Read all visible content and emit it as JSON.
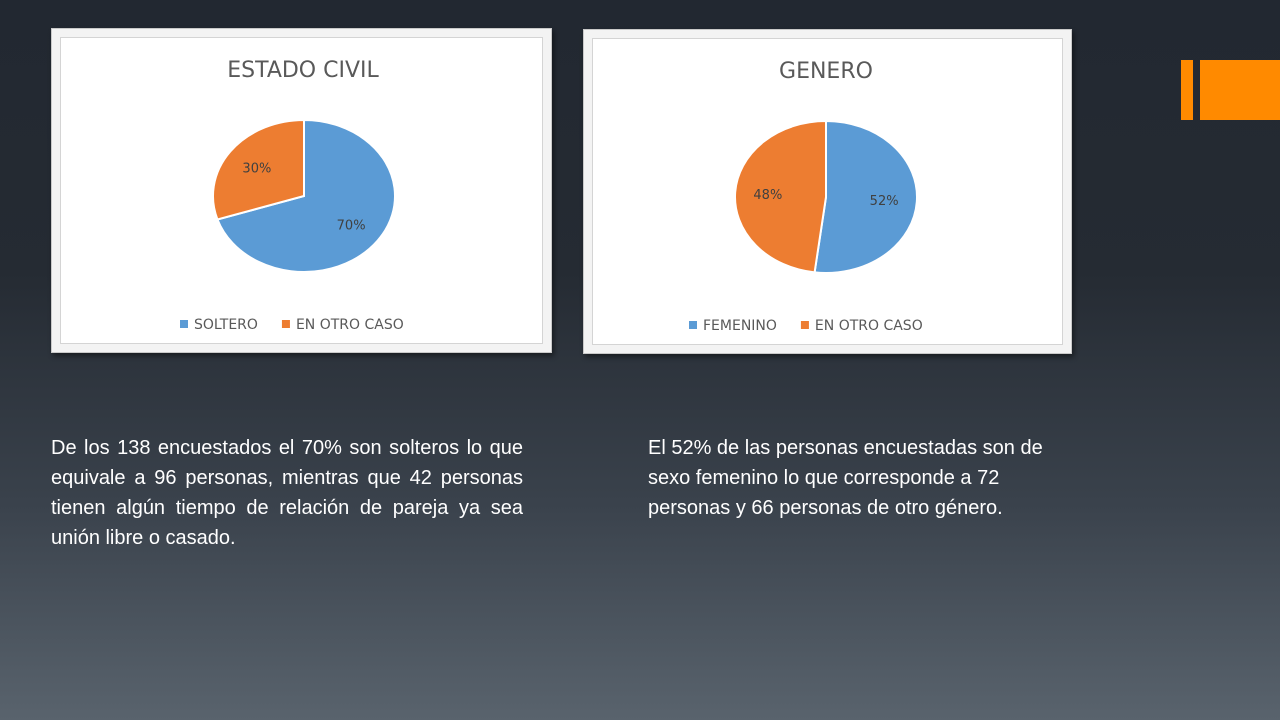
{
  "accent_color": "#ff8a00",
  "colors": {
    "blue": "#5b9bd5",
    "orange": "#ed7d31"
  },
  "chart_data": [
    {
      "type": "pie",
      "title": "ESTADO CIVIL",
      "categories": [
        "SOLTERO",
        "EN OTRO CASO"
      ],
      "values": [
        70,
        30
      ],
      "data_labels": [
        "70%",
        "30%"
      ],
      "colors": [
        "#5b9bd5",
        "#ed7d31"
      ],
      "legend_position": "bottom"
    },
    {
      "type": "pie",
      "title": "GENERO",
      "categories": [
        "FEMENINO",
        "EN OTRO CASO"
      ],
      "values": [
        52,
        48
      ],
      "data_labels": [
        "52%",
        "48%"
      ],
      "colors": [
        "#5b9bd5",
        "#ed7d31"
      ],
      "legend_position": "bottom"
    }
  ],
  "captions": {
    "civil": "De los 138 encuestados el 70% son solteros lo que equivale a 96 personas, mientras que 42 personas tienen algún tiempo de relación de pareja ya sea unión libre o casado.",
    "genero": "El 52% de las personas encuestadas son de sexo femenino lo que corresponde a 72 personas y 66 personas de otro género."
  }
}
